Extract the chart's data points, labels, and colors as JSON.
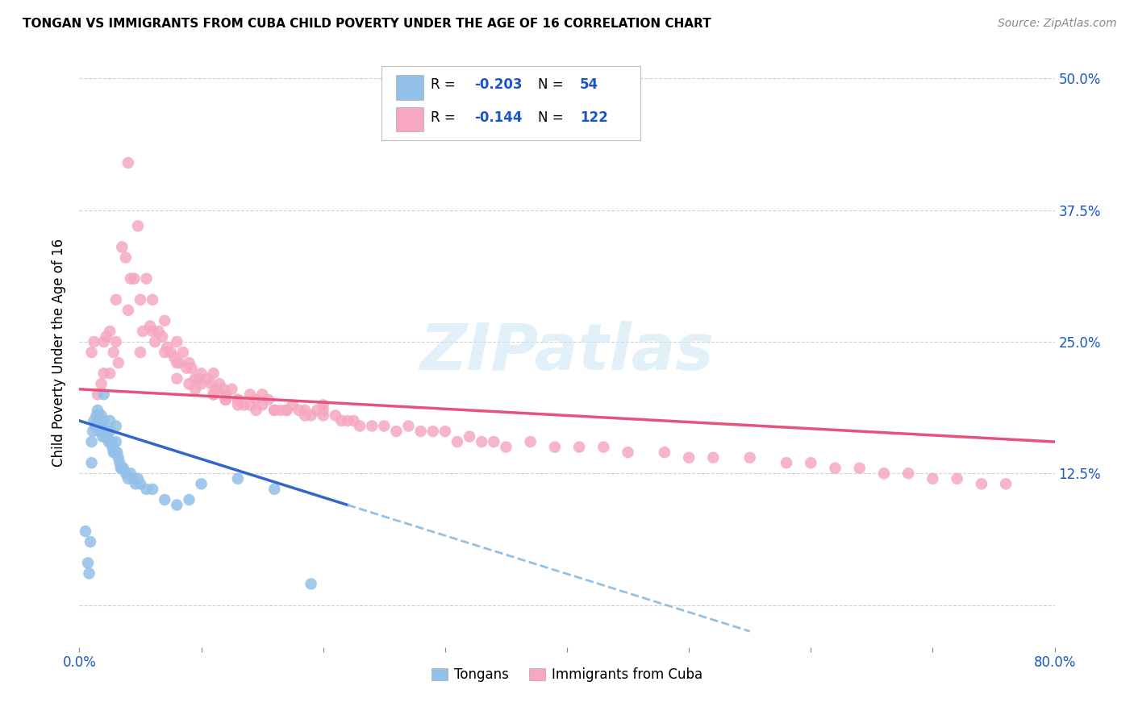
{
  "title": "TONGAN VS IMMIGRANTS FROM CUBA CHILD POVERTY UNDER THE AGE OF 16 CORRELATION CHART",
  "source": "Source: ZipAtlas.com",
  "ylabel": "Child Poverty Under the Age of 16",
  "xlim": [
    0.0,
    0.8
  ],
  "ylim": [
    -0.04,
    0.52
  ],
  "right_ytick_labels": [
    "50.0%",
    "37.5%",
    "25.0%",
    "12.5%"
  ],
  "right_ytick_vals": [
    0.5,
    0.375,
    0.25,
    0.125
  ],
  "tongan_color": "#92c0e8",
  "cuba_color": "#f5a8c0",
  "tongan_R": -0.203,
  "tongan_N": 54,
  "cuba_R": -0.144,
  "cuba_N": 122,
  "tongan_line_color": "#3366cc",
  "cuba_line_color": "#e8527a",
  "dashed_line_color": "#92c0e8",
  "watermark": "ZIPatlas",
  "legend_color": "#1a56c4",
  "background_color": "#ffffff",
  "grid_color": "#cccccc",
  "tongan_line_x0": 0.0,
  "tongan_line_y0": 0.175,
  "tongan_line_x1": 0.22,
  "tongan_line_y1": 0.095,
  "cuba_line_x0": 0.0,
  "cuba_line_x1": 0.8,
  "cuba_line_y0": 0.205,
  "cuba_line_y1": 0.155,
  "tongan_scatter_x": [
    0.005,
    0.007,
    0.008,
    0.009,
    0.01,
    0.01,
    0.011,
    0.012,
    0.013,
    0.014,
    0.015,
    0.015,
    0.016,
    0.017,
    0.018,
    0.018,
    0.019,
    0.02,
    0.02,
    0.02,
    0.021,
    0.022,
    0.023,
    0.024,
    0.025,
    0.025,
    0.026,
    0.027,
    0.028,
    0.029,
    0.03,
    0.03,
    0.031,
    0.032,
    0.033,
    0.034,
    0.035,
    0.036,
    0.038,
    0.04,
    0.042,
    0.044,
    0.046,
    0.048,
    0.05,
    0.055,
    0.06,
    0.07,
    0.08,
    0.09,
    0.1,
    0.13,
    0.16,
    0.19
  ],
  "tongan_scatter_y": [
    0.07,
    0.04,
    0.03,
    0.06,
    0.135,
    0.155,
    0.165,
    0.175,
    0.17,
    0.18,
    0.17,
    0.185,
    0.165,
    0.175,
    0.17,
    0.18,
    0.16,
    0.2,
    0.175,
    0.165,
    0.16,
    0.165,
    0.16,
    0.155,
    0.175,
    0.165,
    0.155,
    0.15,
    0.145,
    0.145,
    0.155,
    0.17,
    0.145,
    0.14,
    0.135,
    0.13,
    0.13,
    0.13,
    0.125,
    0.12,
    0.125,
    0.12,
    0.115,
    0.12,
    0.115,
    0.11,
    0.11,
    0.1,
    0.095,
    0.1,
    0.115,
    0.12,
    0.11,
    0.02
  ],
  "cuba_scatter_x": [
    0.01,
    0.012,
    0.015,
    0.018,
    0.02,
    0.02,
    0.022,
    0.025,
    0.025,
    0.028,
    0.03,
    0.03,
    0.032,
    0.035,
    0.038,
    0.04,
    0.04,
    0.042,
    0.045,
    0.048,
    0.05,
    0.05,
    0.052,
    0.055,
    0.058,
    0.06,
    0.06,
    0.062,
    0.065,
    0.068,
    0.07,
    0.07,
    0.072,
    0.075,
    0.078,
    0.08,
    0.08,
    0.082,
    0.085,
    0.088,
    0.09,
    0.09,
    0.092,
    0.095,
    0.098,
    0.1,
    0.1,
    0.105,
    0.108,
    0.11,
    0.11,
    0.112,
    0.115,
    0.118,
    0.12,
    0.12,
    0.125,
    0.13,
    0.13,
    0.135,
    0.14,
    0.14,
    0.145,
    0.15,
    0.15,
    0.155,
    0.16,
    0.165,
    0.17,
    0.175,
    0.18,
    0.185,
    0.19,
    0.195,
    0.2,
    0.2,
    0.21,
    0.215,
    0.22,
    0.225,
    0.23,
    0.24,
    0.25,
    0.26,
    0.27,
    0.28,
    0.29,
    0.3,
    0.31,
    0.32,
    0.33,
    0.34,
    0.35,
    0.37,
    0.39,
    0.41,
    0.43,
    0.45,
    0.48,
    0.5,
    0.52,
    0.55,
    0.58,
    0.6,
    0.62,
    0.64,
    0.66,
    0.68,
    0.7,
    0.72,
    0.74,
    0.76,
    0.08,
    0.095,
    0.11,
    0.12,
    0.13,
    0.145,
    0.16,
    0.17,
    0.185,
    0.2
  ],
  "cuba_scatter_y": [
    0.24,
    0.25,
    0.2,
    0.21,
    0.22,
    0.25,
    0.255,
    0.22,
    0.26,
    0.24,
    0.25,
    0.29,
    0.23,
    0.34,
    0.33,
    0.28,
    0.42,
    0.31,
    0.31,
    0.36,
    0.24,
    0.29,
    0.26,
    0.31,
    0.265,
    0.26,
    0.29,
    0.25,
    0.26,
    0.255,
    0.24,
    0.27,
    0.245,
    0.24,
    0.235,
    0.23,
    0.25,
    0.23,
    0.24,
    0.225,
    0.23,
    0.21,
    0.225,
    0.215,
    0.215,
    0.21,
    0.22,
    0.215,
    0.21,
    0.2,
    0.22,
    0.205,
    0.21,
    0.205,
    0.2,
    0.195,
    0.205,
    0.195,
    0.195,
    0.19,
    0.2,
    0.19,
    0.195,
    0.19,
    0.2,
    0.195,
    0.185,
    0.185,
    0.185,
    0.19,
    0.185,
    0.18,
    0.18,
    0.185,
    0.18,
    0.19,
    0.18,
    0.175,
    0.175,
    0.175,
    0.17,
    0.17,
    0.17,
    0.165,
    0.17,
    0.165,
    0.165,
    0.165,
    0.155,
    0.16,
    0.155,
    0.155,
    0.15,
    0.155,
    0.15,
    0.15,
    0.15,
    0.145,
    0.145,
    0.14,
    0.14,
    0.14,
    0.135,
    0.135,
    0.13,
    0.13,
    0.125,
    0.125,
    0.12,
    0.12,
    0.115,
    0.115,
    0.215,
    0.205,
    0.2,
    0.195,
    0.19,
    0.185,
    0.185,
    0.185,
    0.185,
    0.185
  ]
}
